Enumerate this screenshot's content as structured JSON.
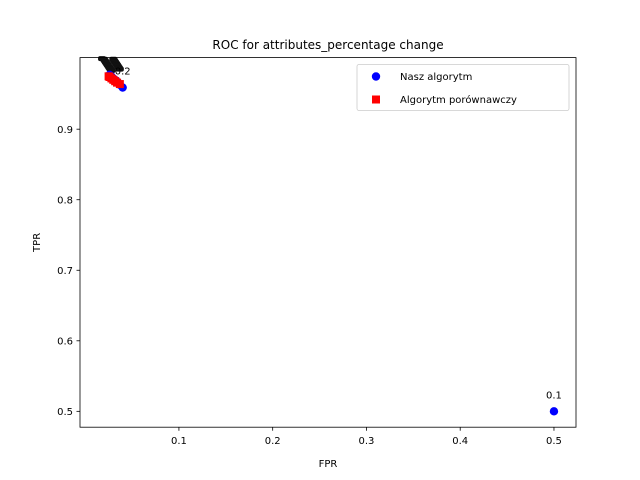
{
  "chart_data": {
    "type": "scatter",
    "title": "ROC for attributes_percentage change",
    "xlabel": "FPR",
    "ylabel": "TPR",
    "xlim": [
      -0.0055,
      0.5235
    ],
    "ylim": [
      0.4775,
      1.0015
    ],
    "xticks": [
      0.1,
      0.2,
      0.3,
      0.4,
      0.5
    ],
    "xtick_labels": [
      "0.1",
      "0.2",
      "0.3",
      "0.4",
      "0.5"
    ],
    "yticks": [
      0.5,
      0.6,
      0.7,
      0.8,
      0.9
    ],
    "ytick_labels": [
      "0.5",
      "0.6",
      "0.7",
      "0.8",
      "0.9"
    ],
    "grid": false,
    "legend_position": "top-right",
    "series": [
      {
        "name": "Nasz algorytm",
        "marker": "circle",
        "color": "#0000ff",
        "points": [
          {
            "x": 0.5,
            "y": 0.5
          },
          {
            "x": 0.04,
            "y": 0.959
          },
          {
            "x": 0.037,
            "y": 0.963
          },
          {
            "x": 0.035,
            "y": 0.966
          },
          {
            "x": 0.033,
            "y": 0.969
          },
          {
            "x": 0.03,
            "y": 0.972
          },
          {
            "x": 0.028,
            "y": 0.975
          },
          {
            "x": 0.026,
            "y": 0.977
          }
        ]
      },
      {
        "name": "Algorytm porównawczy",
        "marker": "square",
        "color": "#ff0000",
        "points": [
          {
            "x": 0.037,
            "y": 0.964
          },
          {
            "x": 0.034,
            "y": 0.966
          },
          {
            "x": 0.032,
            "y": 0.968
          },
          {
            "x": 0.03,
            "y": 0.97
          },
          {
            "x": 0.028,
            "y": 0.972
          },
          {
            "x": 0.026,
            "y": 0.974
          },
          {
            "x": 0.025,
            "y": 0.975
          }
        ]
      }
    ],
    "point_annotations": [
      {
        "text": "0.1",
        "x": 0.5,
        "y": 0.5
      },
      {
        "text": "0.2",
        "x": 0.04,
        "y": 0.959
      }
    ],
    "annotation_clutter_points": [
      {
        "x": 0.018,
        "y": 0.998
      },
      {
        "x": 0.02,
        "y": 0.997
      },
      {
        "x": 0.021,
        "y": 0.995
      },
      {
        "x": 0.022,
        "y": 0.993
      },
      {
        "x": 0.023,
        "y": 0.991
      },
      {
        "x": 0.024,
        "y": 0.989
      },
      {
        "x": 0.025,
        "y": 0.987
      },
      {
        "x": 0.026,
        "y": 0.985
      },
      {
        "x": 0.027,
        "y": 0.983
      },
      {
        "x": 0.028,
        "y": 0.981
      },
      {
        "x": 0.03,
        "y": 0.997
      },
      {
        "x": 0.031,
        "y": 0.995
      },
      {
        "x": 0.032,
        "y": 0.993
      },
      {
        "x": 0.033,
        "y": 0.991
      },
      {
        "x": 0.034,
        "y": 0.989
      },
      {
        "x": 0.035,
        "y": 0.987
      },
      {
        "x": 0.036,
        "y": 0.985
      },
      {
        "x": 0.037,
        "y": 0.983
      }
    ]
  }
}
